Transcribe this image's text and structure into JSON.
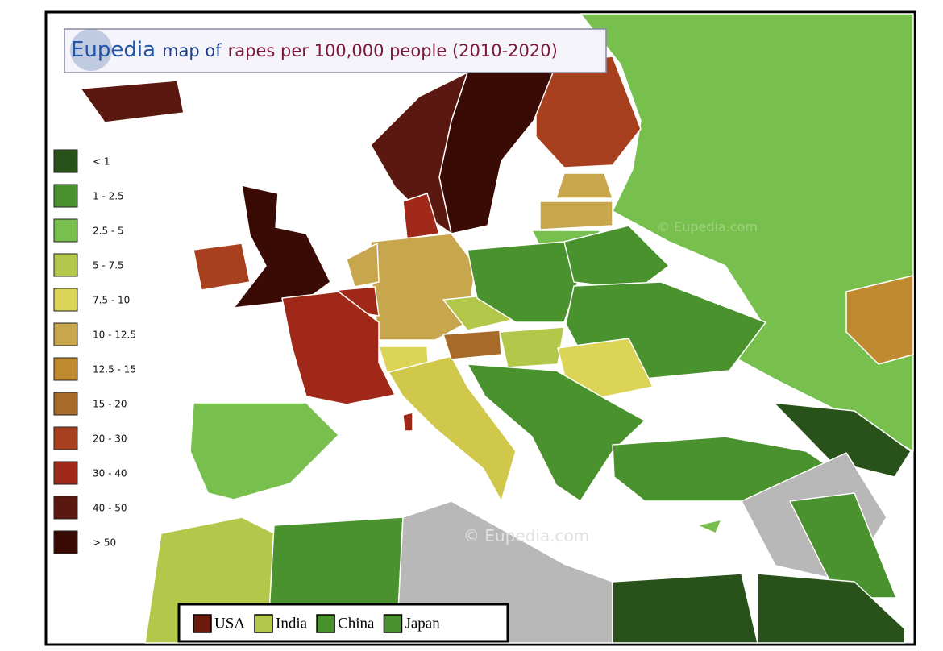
{
  "title": {
    "brand": "Eupedia",
    "text_1": "map of",
    "text_2": "rapes per 100,000 people (2010-2020)"
  },
  "legend": {
    "items": [
      {
        "label": "< 1",
        "color": "#29521a"
      },
      {
        "label": "1 - 2.5",
        "color": "#4a922e"
      },
      {
        "label": "2.5 - 5",
        "color": "#78c04e"
      },
      {
        "label": "5 - 7.5",
        "color": "#b3c84a"
      },
      {
        "label": "7.5 - 10",
        "color": "#dcd456"
      },
      {
        "label": "10 - 12.5",
        "color": "#c8a64e"
      },
      {
        "label": "12.5 - 15",
        "color": "#c08a30"
      },
      {
        "label": "15 - 20",
        "color": "#a86a28"
      },
      {
        "label": "20 - 30",
        "color": "#a84020"
      },
      {
        "label": "30 - 40",
        "color": "#a02818"
      },
      {
        "label": "40 - 50",
        "color": "#5a1810"
      },
      {
        "label": "> 50",
        "color": "#3a0a04"
      }
    ]
  },
  "comparison_legend": {
    "items": [
      {
        "label": "USA",
        "color": "#6b1a0e"
      },
      {
        "label": "India",
        "color": "#b3c84a"
      },
      {
        "label": "China",
        "color": "#4a922e"
      },
      {
        "label": "Japan",
        "color": "#4a922e"
      }
    ]
  },
  "watermarks": [
    "© Eupedia.com",
    "© Eupedia.com"
  ]
}
